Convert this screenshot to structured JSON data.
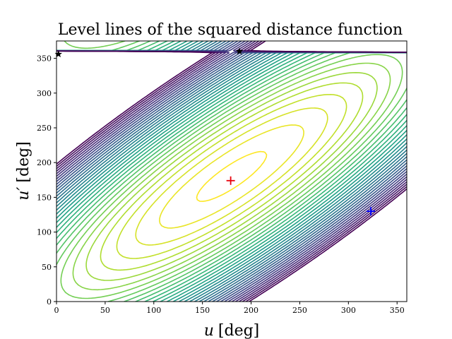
{
  "chart_data": {
    "type": "contour",
    "title": "Level lines of the squared distance function",
    "xlabel": {
      "var": "u",
      "unit": "[deg]"
    },
    "ylabel": {
      "var": "u′",
      "unit": "[deg]"
    },
    "xlim": [
      0,
      360
    ],
    "ylim": [
      0,
      375
    ],
    "x_ticks": [
      0,
      50,
      100,
      150,
      200,
      250,
      300,
      350
    ],
    "y_ticks": [
      0,
      50,
      100,
      150,
      200,
      250,
      300,
      350
    ],
    "grid": false,
    "colormap": "viridis",
    "colormap_stops": [
      "#440154",
      "#482878",
      "#3e4989",
      "#31688e",
      "#26828e",
      "#1f9e89",
      "#35b779",
      "#6ece58",
      "#b5de2b",
      "#fde725"
    ],
    "function_center": [
      180,
      180
    ],
    "function_period_y": 360,
    "contour_count": 34,
    "markers": [
      {
        "label": "red cross",
        "shape": "plus",
        "color": "#e8000b",
        "x": 179,
        "y": 174
      },
      {
        "label": "blue cross",
        "shape": "plus",
        "color": "#0000ff",
        "x": 323,
        "y": 130
      },
      {
        "label": "star",
        "shape": "star",
        "color": "#000000",
        "x": 2,
        "y": 356
      },
      {
        "label": "star",
        "shape": "star",
        "color": "#000000",
        "x": 188,
        "y": 360
      }
    ]
  }
}
